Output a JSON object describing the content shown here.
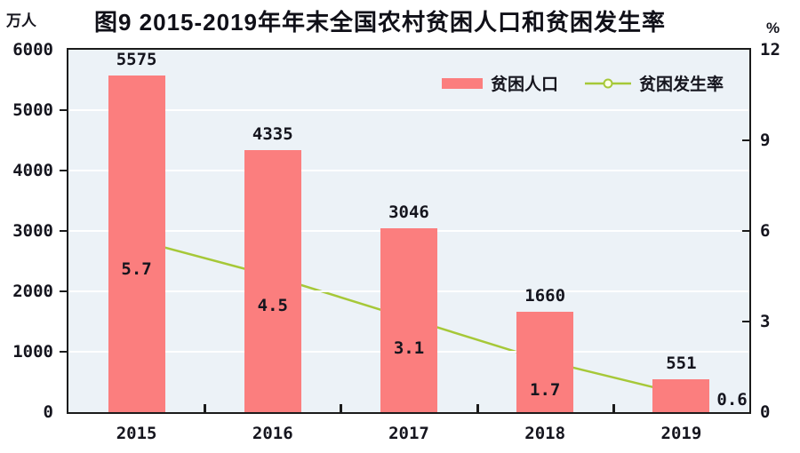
{
  "figure": {
    "title": "图9  2015-2019年年末全国农村贫困人口和贫困发生率",
    "left_unit": "万人",
    "right_unit": "%"
  },
  "legend": {
    "bar_label": "贫困人口",
    "line_label": "贫困发生率"
  },
  "chart_data": {
    "type": "bar",
    "combo": "bar+line dual axis",
    "title": "图9 2015-2019年年末全国农村贫困人口和贫困发生率",
    "categories": [
      "2015",
      "2016",
      "2017",
      "2018",
      "2019"
    ],
    "series": [
      {
        "name": "贫困人口",
        "type": "bar",
        "axis": "left",
        "unit": "万人",
        "values": [
          5575,
          4335,
          3046,
          1660,
          551
        ]
      },
      {
        "name": "贫困发生率",
        "type": "line",
        "axis": "right",
        "unit": "%",
        "values": [
          5.7,
          4.5,
          3.1,
          1.7,
          0.6
        ]
      }
    ],
    "left_axis": {
      "label": "万人",
      "min": 0,
      "max": 6000,
      "step": 1000,
      "ticks": [
        0,
        1000,
        2000,
        3000,
        4000,
        5000,
        6000
      ]
    },
    "right_axis": {
      "label": "%",
      "min": 0,
      "max": 12,
      "step": 3,
      "ticks": [
        0,
        3,
        6,
        9,
        12
      ]
    },
    "grid": true,
    "legend_position": "top-right-inside",
    "colors": {
      "bar": "#FB7E7E",
      "line": "#A6C838",
      "marker_fill": "#FDFFE8",
      "plot_bg": "#ECF2F7",
      "grid": "#FFFFFF",
      "border": "#1B1B1B",
      "text": "#15151E"
    }
  }
}
